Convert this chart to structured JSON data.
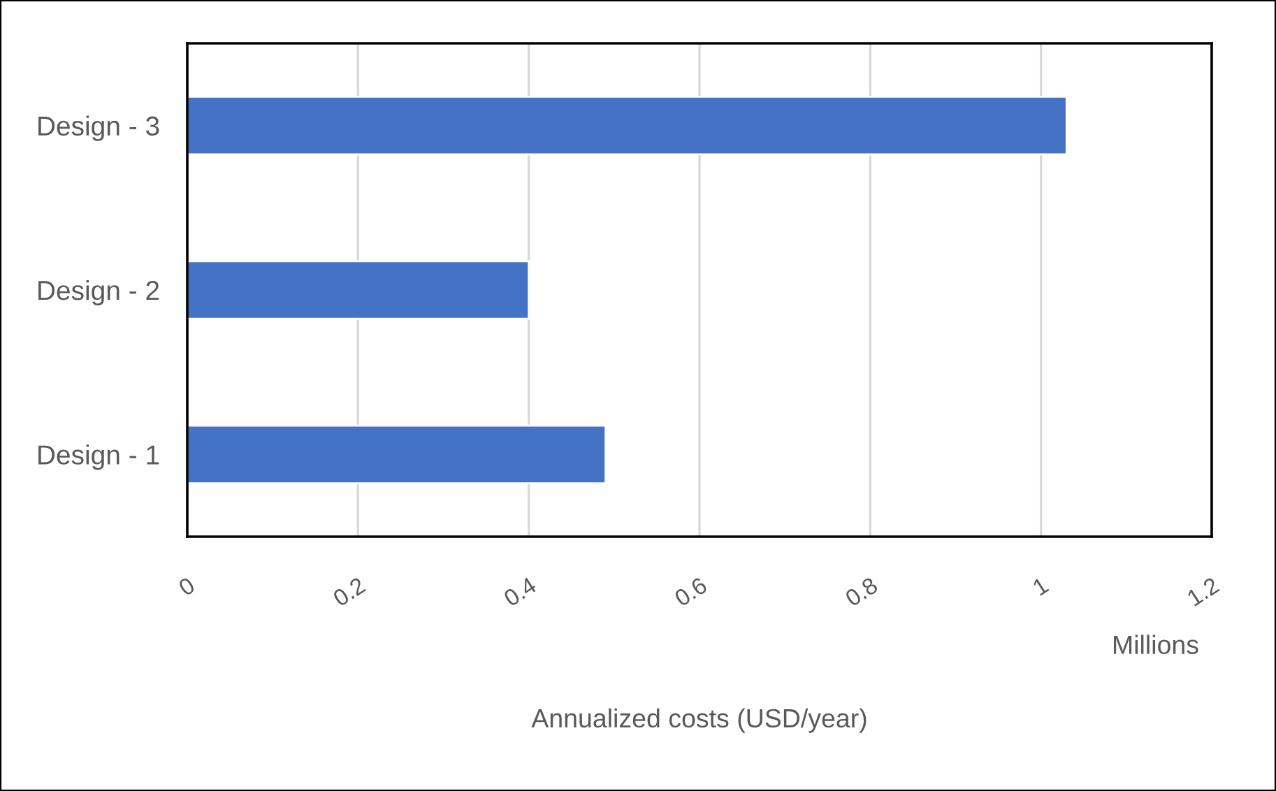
{
  "chart_data": {
    "type": "bar",
    "orientation": "horizontal",
    "categories": [
      "Design - 3",
      "Design - 2",
      "Design - 1"
    ],
    "values": [
      1.03,
      0.4,
      0.49
    ],
    "color": "#4472c4",
    "xlim": [
      0,
      1.2
    ],
    "xticks": [
      0,
      0.2,
      0.4,
      0.6,
      0.8,
      1,
      1.2
    ],
    "xlabel": "Annualized costs (USD/year)",
    "annotations": [
      "Millions"
    ],
    "grid": "x",
    "legend": false
  }
}
